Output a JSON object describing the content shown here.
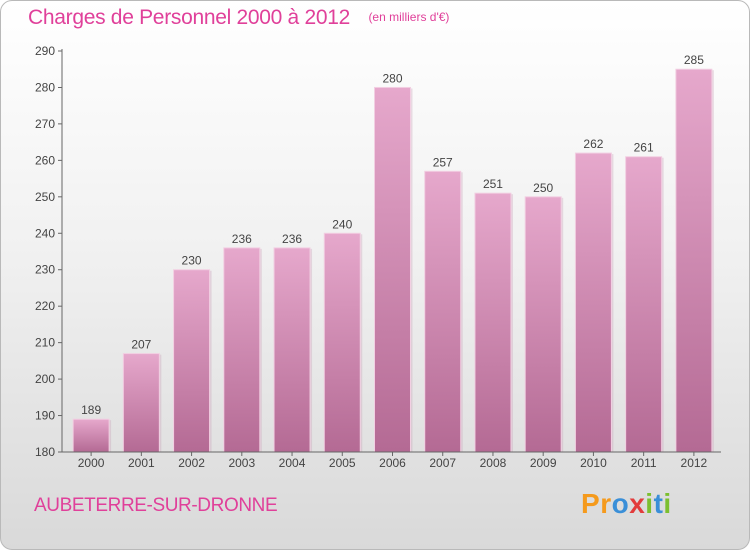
{
  "chart_data": {
    "type": "bar",
    "title": "Charges de Personnel 2000 à 2012",
    "subtitle": "(en milliers d'€)",
    "categories": [
      "2000",
      "2001",
      "2002",
      "2003",
      "2004",
      "2005",
      "2006",
      "2007",
      "2008",
      "2009",
      "2010",
      "2011",
      "2012"
    ],
    "values": [
      189,
      207,
      230,
      236,
      236,
      240,
      280,
      257,
      251,
      250,
      262,
      261,
      285
    ],
    "ylim": [
      180,
      290
    ],
    "yticks": [
      180,
      190,
      200,
      210,
      220,
      230,
      240,
      250,
      260,
      270,
      280,
      290
    ],
    "grid": false,
    "bar_color": "#d77bb0"
  },
  "commune": "AUBETERRE-SUR-DRONNE",
  "logo": {
    "text": "Proxiti",
    "letters": [
      {
        "ch": "P",
        "color": "#f59a1c"
      },
      {
        "ch": "r",
        "color": "#f59a1c"
      },
      {
        "ch": "o",
        "color": "#3a8fd8"
      },
      {
        "ch": "x",
        "color": "#e23c3c"
      },
      {
        "ch": "i",
        "color": "#7cbf2f"
      },
      {
        "ch": "t",
        "color": "#3a8fd8"
      },
      {
        "ch": "i",
        "color": "#7cbf2f"
      }
    ]
  }
}
